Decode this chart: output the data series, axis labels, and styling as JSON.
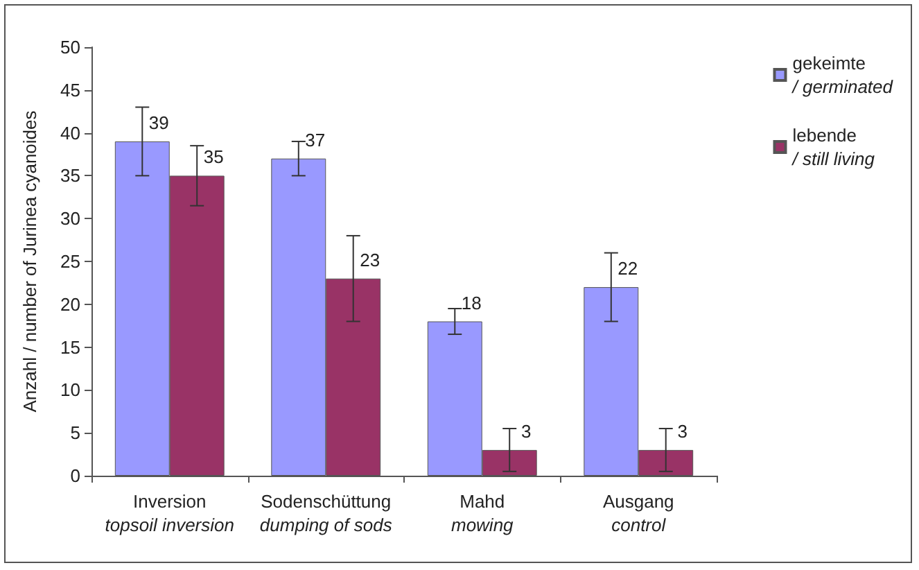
{
  "chart_data": {
    "type": "bar",
    "ylabel": "Anzahl / number of Jurinea cyanoides",
    "categories": [
      "Inversion\ntopsoil inversion",
      "Sodenschüttung\ndumping of sods",
      "Mahd\nmowing",
      "Ausgang\ncontrol"
    ],
    "series": [
      {
        "name": "gekeimte\n/ germinated",
        "color": "#9999ff",
        "values": [
          39,
          37,
          18,
          22
        ],
        "errors": [
          4,
          2,
          1.5,
          4
        ]
      },
      {
        "name": "lebende\n/ still living",
        "color": "#993366",
        "values": [
          35,
          23,
          3,
          3
        ],
        "errors": [
          3.5,
          5,
          2.5,
          2.5
        ]
      }
    ],
    "ylim": [
      0,
      50
    ],
    "yticks": [
      0,
      5,
      10,
      15,
      20,
      25,
      30,
      35,
      40,
      45,
      50
    ],
    "data_labels": true,
    "grid": false,
    "legend": "top right"
  }
}
